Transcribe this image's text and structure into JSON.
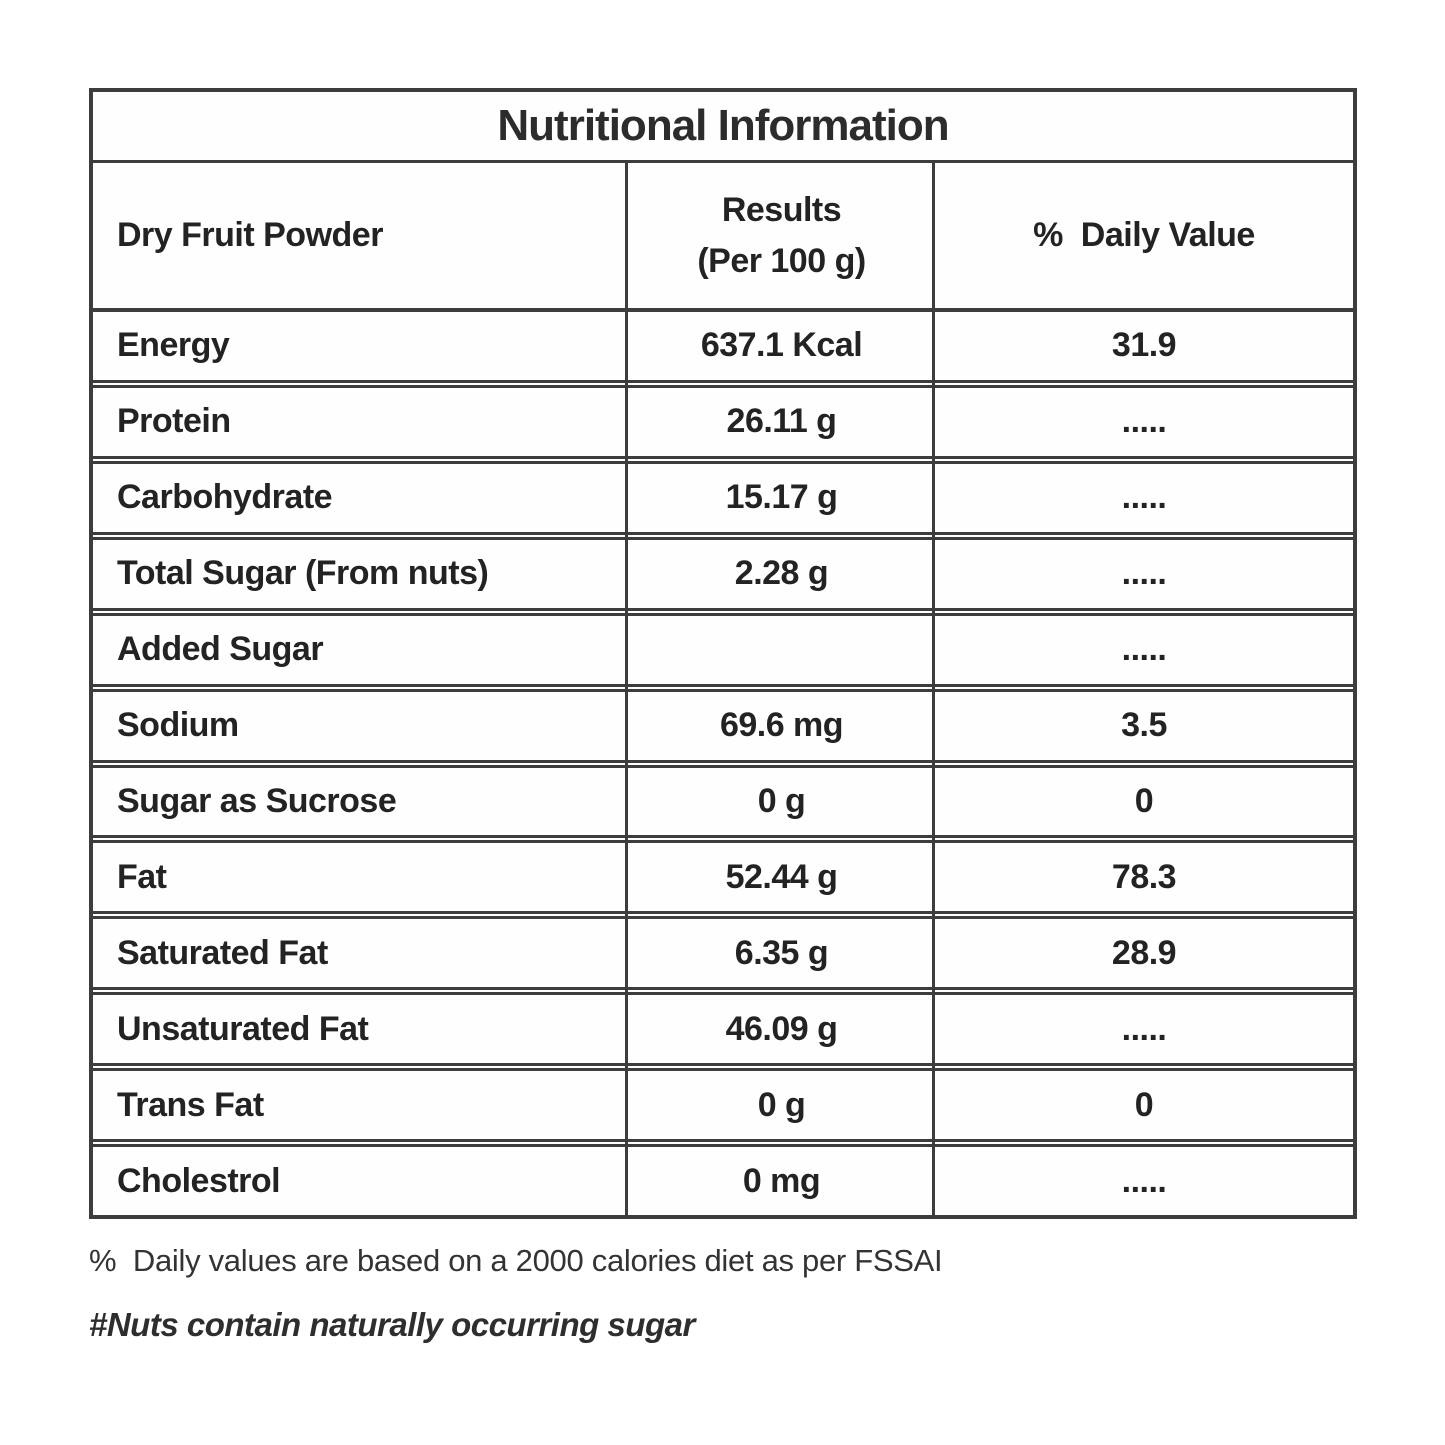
{
  "table": {
    "title": "Nutritional Information",
    "columns": [
      {
        "label": "Dry Fruit Powder"
      },
      {
        "line1": "Results",
        "line2": "(Per 100 g)"
      },
      {
        "label": "%  Daily Value"
      }
    ],
    "rows": [
      {
        "name": "Energy",
        "result": "637.1 Kcal",
        "daily_value": "31.9"
      },
      {
        "name": "Protein",
        "result": "26.11 g",
        "daily_value": "....."
      },
      {
        "name": "Carbohydrate",
        "result": "15.17 g",
        "daily_value": "....."
      },
      {
        "name": "Total Sugar (From nuts)",
        "result": "2.28 g",
        "daily_value": "....."
      },
      {
        "name": "Added Sugar",
        "result": "",
        "daily_value": "....."
      },
      {
        "name": "Sodium",
        "result": "69.6 mg",
        "daily_value": "3.5"
      },
      {
        "name": "Sugar as Sucrose",
        "result": "0 g",
        "daily_value": "0"
      },
      {
        "name": "Fat",
        "result": "52.44 g",
        "daily_value": "78.3"
      },
      {
        "name": "Saturated Fat",
        "result": "6.35 g",
        "daily_value": "28.9"
      },
      {
        "name": "Unsaturated Fat",
        "result": "46.09 g",
        "daily_value": "....."
      },
      {
        "name": "Trans Fat",
        "result": "0 g",
        "daily_value": "0"
      },
      {
        "name": "Cholestrol",
        "result": "0 mg",
        "daily_value": "....."
      }
    ]
  },
  "footnotes": [
    "%  Daily values are based on a 2000 calories diet as per FSSAI",
    "#Nuts contain naturally occurring sugar"
  ],
  "colors": {
    "text": "#232323",
    "border": "#3d3d3d",
    "background": "#ffffff"
  }
}
